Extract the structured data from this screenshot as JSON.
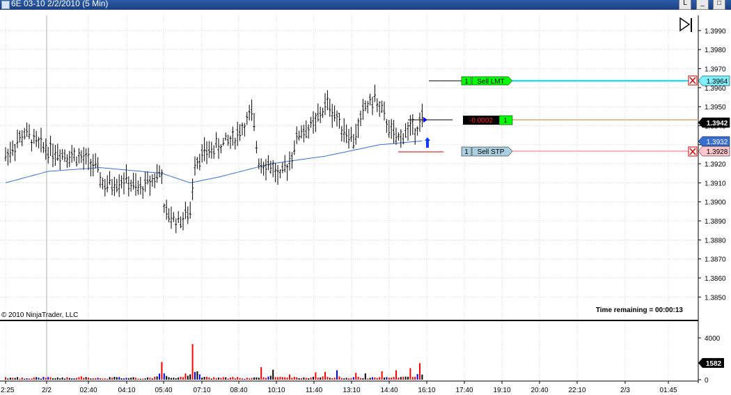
{
  "window": {
    "title": "6E 03-10  2/2/2010 (5 Min)",
    "controls": {
      "layout": "L",
      "minimize": "_",
      "maximize": "□"
    }
  },
  "copyright": "© 2010 NinjaTrader, LLC",
  "time_remaining": "Time remaining = 00:00:13",
  "orders": [
    {
      "qty": "1",
      "label": "Sell LMT",
      "price": "1.3964",
      "color": "#00ff00",
      "line_color": "#00e5ff",
      "cancel": "X",
      "kind": "limit"
    },
    {
      "qty": "1",
      "label": "Sell STP",
      "price": "1.3928",
      "color": "#a9cfe0",
      "line_color": "#ff9aa8",
      "cancel": "X",
      "kind": "stop"
    }
  ],
  "position": {
    "pnl": "-0.0002",
    "qty": "1",
    "price": "1.3942",
    "line_color": "#d8a878"
  },
  "sma_tag": "1.3932",
  "volume_tag": "1582",
  "colors": {
    "bar": "#000000",
    "up_volume": "#000000",
    "down_volume": "#ff0000",
    "neutral_volume": "#0000ff",
    "sma": "#3a6fcf"
  },
  "chart_data": {
    "type": "bar",
    "title": "6E 03-10  2/2/2010 (5 Min)",
    "x_tick_labels": [
      "2:25",
      "2/2",
      "02:40",
      "04:10",
      "05:40",
      "07:10",
      "08:40",
      "10:10",
      "11:40",
      "13:10",
      "14:40",
      "16:10",
      "17:40",
      "19:10",
      "20:40",
      "22:10",
      "2/3",
      "01:45"
    ],
    "price_axis": {
      "ticks": [
        "1.3990",
        "1.3980",
        "1.3970",
        "1.3960",
        "1.3950",
        "1.3940",
        "1.3930",
        "1.3920",
        "1.3910",
        "1.3900",
        "1.3890",
        "1.3880",
        "1.3870",
        "1.3860",
        "1.3850"
      ],
      "ylim": [
        1.3845,
        1.3998
      ]
    },
    "volume_axis": {
      "ticks": [
        "4000",
        "0"
      ],
      "ylim": [
        0,
        5000
      ]
    },
    "price_series": {
      "name": "6E 03-10",
      "anchors": [
        [
          0,
          1.3924
        ],
        [
          8,
          1.3936
        ],
        [
          14,
          1.393
        ],
        [
          22,
          1.3926
        ],
        [
          30,
          1.3924
        ],
        [
          37,
          1.392
        ],
        [
          42,
          1.3908
        ],
        [
          50,
          1.3912
        ],
        [
          56,
          1.3906
        ],
        [
          62,
          1.3912
        ],
        [
          66,
          1.3916
        ],
        [
          67,
          1.3894
        ],
        [
          73,
          1.389
        ],
        [
          78,
          1.3894
        ],
        [
          80,
          1.3922
        ],
        [
          85,
          1.3926
        ],
        [
          91,
          1.393
        ],
        [
          97,
          1.3934
        ],
        [
          104,
          1.3946
        ],
        [
          107,
          1.3922
        ],
        [
          113,
          1.3918
        ],
        [
          116,
          1.3912
        ],
        [
          120,
          1.3922
        ],
        [
          124,
          1.3936
        ],
        [
          130,
          1.394
        ],
        [
          136,
          1.3952
        ],
        [
          142,
          1.394
        ],
        [
          147,
          1.3932
        ],
        [
          152,
          1.395
        ],
        [
          156,
          1.3954
        ],
        [
          161,
          1.3942
        ],
        [
          165,
          1.3932
        ],
        [
          170,
          1.3938
        ],
        [
          174,
          1.394
        ],
        [
          176,
          1.3944
        ]
      ]
    },
    "sma_series": {
      "name": "SMA",
      "anchors": [
        [
          0,
          1.391
        ],
        [
          18,
          1.3916
        ],
        [
          40,
          1.3918
        ],
        [
          66,
          1.3915
        ],
        [
          78,
          1.391
        ],
        [
          90,
          1.3913
        ],
        [
          112,
          1.392
        ],
        [
          135,
          1.3924
        ],
        [
          158,
          1.393
        ],
        [
          176,
          1.3932
        ]
      ]
    },
    "volume_series": {
      "baseline": 200,
      "spikes": [
        [
          3,
          180
        ],
        [
          32,
          320
        ],
        [
          66,
          1700
        ],
        [
          79,
          3400
        ],
        [
          108,
          1200
        ],
        [
          113,
          950
        ],
        [
          120,
          500
        ],
        [
          131,
          700
        ],
        [
          135,
          750
        ],
        [
          140,
          900
        ],
        [
          148,
          650
        ],
        [
          152,
          600
        ],
        [
          159,
          800
        ],
        [
          165,
          900
        ],
        [
          171,
          1100
        ],
        [
          175,
          1582
        ]
      ]
    },
    "bar_count": 177
  }
}
